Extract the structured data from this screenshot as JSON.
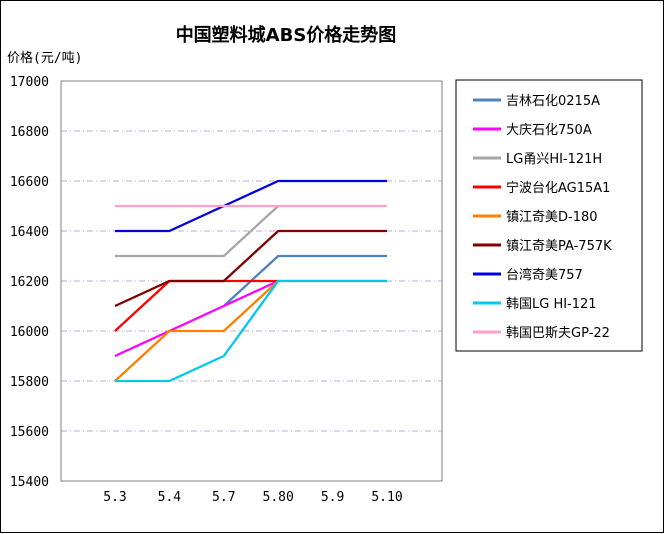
{
  "chart_data": {
    "type": "line",
    "title": "中国塑料城ABS价格走势图",
    "ylabel": "价格(元/吨)",
    "xlabel": "",
    "categories": [
      "5.3",
      "5.4",
      "5.7",
      "5.80",
      "5.9",
      "5.10"
    ],
    "ylim": [
      15400,
      17000
    ],
    "yticks": [
      15400,
      15600,
      15800,
      16000,
      16200,
      16400,
      16600,
      16800,
      17000
    ],
    "grid": "horizontal dash-dot",
    "legend_position": "right",
    "series": [
      {
        "name": "吉林石化0215A",
        "color": "#4f81bd",
        "values": [
          null,
          null,
          16100,
          16300,
          16300,
          16300
        ]
      },
      {
        "name": "大庆石化750A",
        "color": "#ff00ff",
        "values": [
          15900,
          16000,
          16100,
          16200,
          null,
          null
        ]
      },
      {
        "name": "LG甬兴HI-121H",
        "color": "#a6a6a6",
        "values": [
          16300,
          16300,
          16300,
          16500,
          null,
          null
        ]
      },
      {
        "name": "宁波台化AG15A1",
        "color": "#ff0000",
        "values": [
          16000,
          16200,
          16200,
          16200,
          null,
          null
        ]
      },
      {
        "name": "镇江奇美D-180",
        "color": "#ff7f00",
        "values": [
          15800,
          16000,
          16000,
          16200,
          16200,
          16200
        ]
      },
      {
        "name": "镇江奇美PA-757K",
        "color": "#800000",
        "values": [
          16100,
          16200,
          16200,
          16400,
          16400,
          16400
        ]
      },
      {
        "name": "台湾奇美757",
        "color": "#0000e0",
        "values": [
          16400,
          16400,
          16500,
          16600,
          16600,
          16600
        ]
      },
      {
        "name": "韩国LG HI-121",
        "color": "#00c8f0",
        "values": [
          15800,
          15800,
          15900,
          16200,
          16200,
          16200
        ]
      },
      {
        "name": "韩国巴斯夫GP-22",
        "color": "#ffa0c8",
        "values": [
          16500,
          16500,
          16500,
          16500,
          16500,
          16500
        ]
      }
    ]
  }
}
